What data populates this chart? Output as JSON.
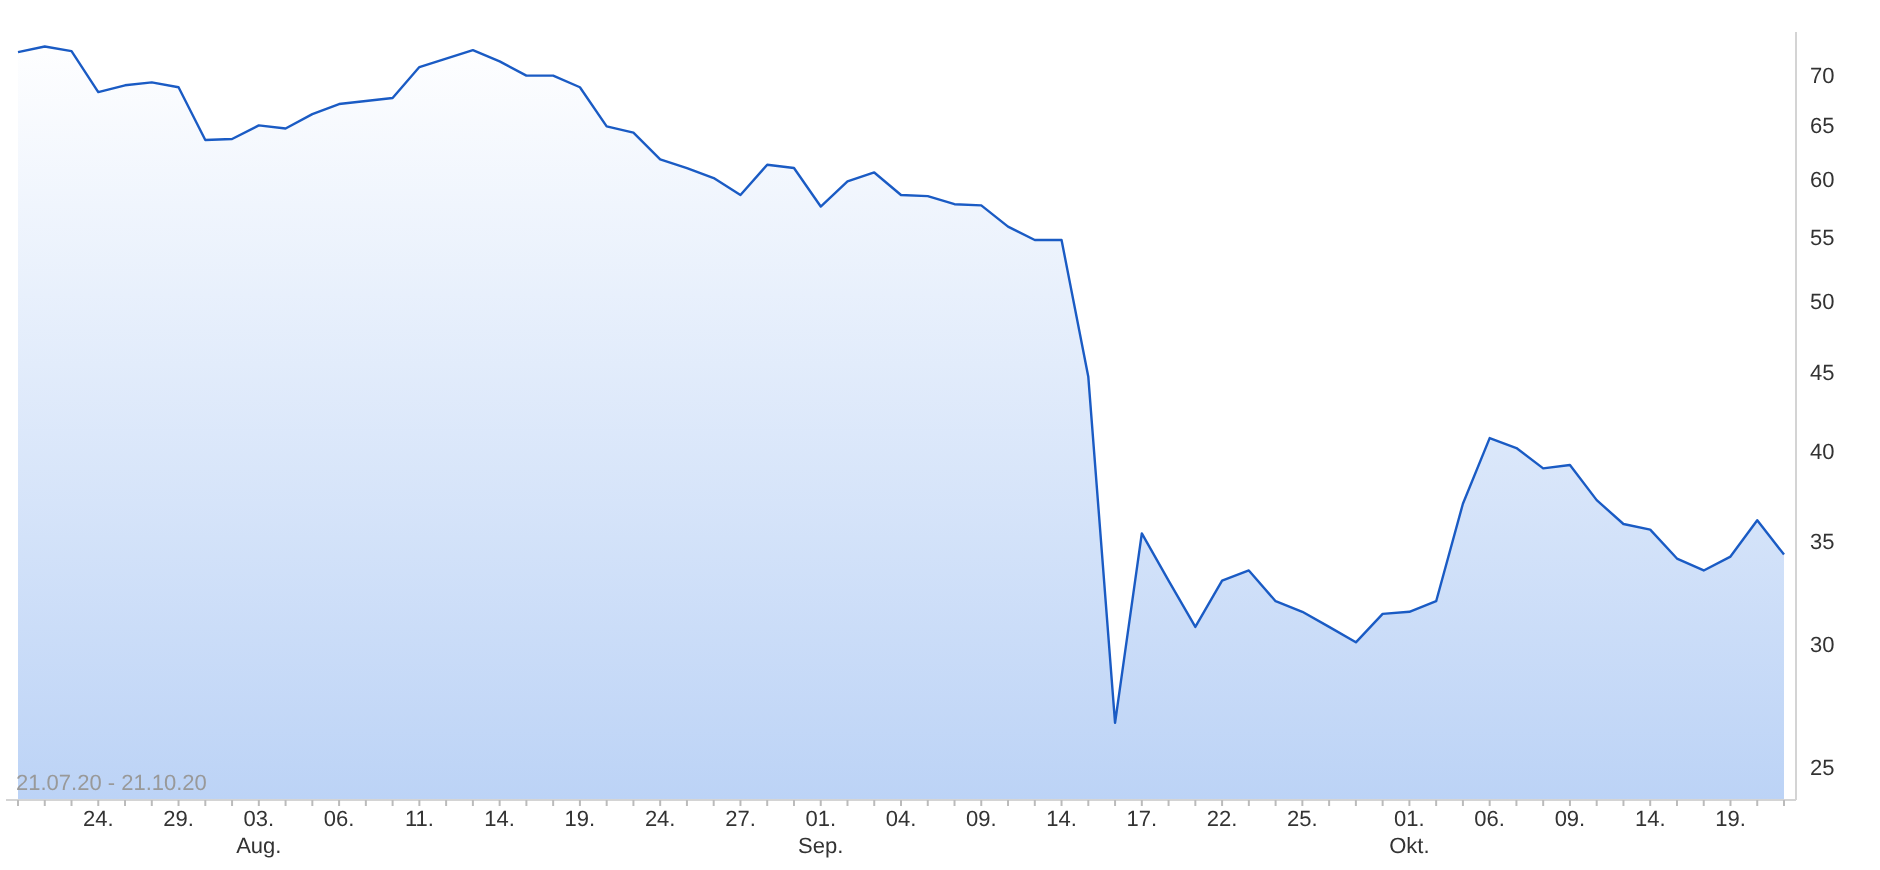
{
  "chart_data": {
    "type": "area",
    "categories": [
      null,
      null,
      null,
      "24.",
      null,
      null,
      "29.",
      null,
      null,
      "03. Aug.",
      null,
      null,
      "06.",
      null,
      null,
      "11.",
      null,
      null,
      "14.",
      null,
      null,
      "19.",
      null,
      null,
      "24.",
      null,
      null,
      "27.",
      null,
      null,
      "01. Sep.",
      null,
      null,
      "04.",
      null,
      null,
      "09.",
      null,
      null,
      "14.",
      null,
      null,
      "17.",
      null,
      null,
      "22.",
      null,
      null,
      "25.",
      null,
      null,
      null,
      "01. Okt.",
      null,
      null,
      "06.",
      null,
      null,
      "09.",
      null,
      null,
      "14.",
      null,
      null,
      "19.",
      null,
      null
    ],
    "series": [
      {
        "color": "#1a5bc4",
        "values": [
          72.5,
          73.1,
          72.6,
          68.3,
          69.0,
          69.3,
          68.8,
          63.6,
          63.7,
          65.0,
          64.7,
          66.1,
          67.1,
          67.4,
          67.7,
          70.9,
          71.8,
          72.7,
          71.5,
          70.0,
          70.0,
          68.8,
          64.9,
          64.3,
          61.8,
          61.0,
          60.1,
          58.6,
          61.3,
          61.0,
          57.6,
          59.8,
          60.6,
          58.6,
          58.5,
          57.8,
          57.7,
          55.9,
          54.8,
          54.8,
          44.7,
          26.7,
          35.4,
          33.0,
          30.8,
          33.0,
          33.5,
          32.0,
          31.5,
          30.8,
          30.1,
          31.4,
          31.5,
          32.0,
          37.0,
          40.8,
          40.2,
          39.0,
          39.2,
          37.2,
          35.9,
          35.6,
          34.1,
          33.5,
          34.2,
          36.1,
          34.3
        ]
      }
    ],
    "ylim": [
      23.8,
      74.7
    ],
    "yticks": [
      25,
      30,
      35,
      40,
      45,
      50,
      55,
      60,
      65,
      70
    ],
    "log": true,
    "annotations": [
      "21.07.20 - 21.10.20"
    ]
  }
}
